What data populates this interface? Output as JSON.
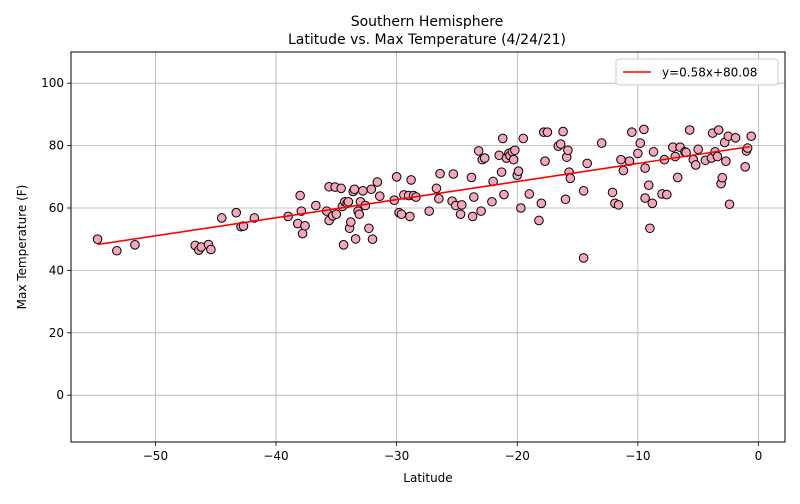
{
  "chart_data": {
    "type": "scatter",
    "title_line1": "Southern Hemisphere",
    "title_line2": "Latitude vs. Max Temperature (4/24/21)",
    "xlabel": "Latitude",
    "ylabel": "Max Temperature (F)",
    "xlim": [
      -57,
      2.2
    ],
    "ylim": [
      -15,
      110
    ],
    "xticks": [
      -50,
      -40,
      -30,
      -20,
      -10,
      0
    ],
    "yticks": [
      0,
      20,
      40,
      60,
      80,
      100
    ],
    "grid": true,
    "legend_position": "top-right",
    "legend_label": "y=0.58x+80.08",
    "regression": {
      "slope": 0.58,
      "intercept": 80.08,
      "x_range": [
        -54.8,
        -0.7
      ],
      "color": "#ff0000"
    },
    "marker_fill": "#f4a7b9",
    "marker_edge": "#000000",
    "points": [
      [
        -54.8,
        50
      ],
      [
        -53.2,
        46.3
      ],
      [
        -51.7,
        48.2
      ],
      [
        -46.7,
        48
      ],
      [
        -46.4,
        46.5
      ],
      [
        -46.2,
        47.5
      ],
      [
        -45.6,
        48.3
      ],
      [
        -45.4,
        46.7
      ],
      [
        -44.5,
        56.8
      ],
      [
        -43.3,
        58.5
      ],
      [
        -42.9,
        54
      ],
      [
        -42.7,
        54.2
      ],
      [
        -41.8,
        56.8
      ],
      [
        -39,
        57.3
      ],
      [
        -38.2,
        55
      ],
      [
        -38,
        64
      ],
      [
        -37.9,
        59
      ],
      [
        -37.8,
        51.8
      ],
      [
        -37.6,
        54.3
      ],
      [
        -36.7,
        60.8
      ],
      [
        -35.8,
        59
      ],
      [
        -35.6,
        66.8
      ],
      [
        -35.6,
        56
      ],
      [
        -35.3,
        57.5
      ],
      [
        -35.1,
        66.7
      ],
      [
        -35,
        58
      ],
      [
        -34.6,
        66.3
      ],
      [
        -34.5,
        60.5
      ],
      [
        -34.4,
        48.2
      ],
      [
        -34.3,
        62
      ],
      [
        -34.1,
        61.5
      ],
      [
        -34,
        62
      ],
      [
        -33.9,
        53.5
      ],
      [
        -33.8,
        55.5
      ],
      [
        -33.6,
        65.3
      ],
      [
        -33.5,
        66
      ],
      [
        -33.4,
        50.1
      ],
      [
        -33.2,
        59
      ],
      [
        -33.1,
        58
      ],
      [
        -33,
        62
      ],
      [
        -32.8,
        65.5
      ],
      [
        -32.6,
        60.8
      ],
      [
        -32.3,
        53.5
      ],
      [
        -32.1,
        66
      ],
      [
        -32,
        50
      ],
      [
        -31.6,
        68.3
      ],
      [
        -31.4,
        63.8
      ],
      [
        -30.2,
        62.5
      ],
      [
        -30,
        70
      ],
      [
        -29.8,
        58.5
      ],
      [
        -29.6,
        58
      ],
      [
        -29.4,
        64.2
      ],
      [
        -29,
        64
      ],
      [
        -28.9,
        57.3
      ],
      [
        -28.8,
        69
      ],
      [
        -28.6,
        64
      ],
      [
        -28.4,
        63.5
      ],
      [
        -27.3,
        59
      ],
      [
        -26.7,
        66.3
      ],
      [
        -26.5,
        63
      ],
      [
        -26.4,
        71
      ],
      [
        -25.4,
        62.2
      ],
      [
        -25.3,
        70.9
      ],
      [
        -25.1,
        60.8
      ],
      [
        -24.7,
        58
      ],
      [
        -24.6,
        61
      ],
      [
        -23.8,
        69.8
      ],
      [
        -23.7,
        57.3
      ],
      [
        -23.6,
        63.5
      ],
      [
        -23.2,
        78.3
      ],
      [
        -23,
        59
      ],
      [
        -22.9,
        75.5
      ],
      [
        -22.7,
        76
      ],
      [
        -22.1,
        62
      ],
      [
        -22,
        68.5
      ],
      [
        -21.5,
        76.9
      ],
      [
        -21.3,
        71.5
      ],
      [
        -21.2,
        82.3
      ],
      [
        -21.1,
        64.3
      ],
      [
        -20.9,
        76
      ],
      [
        -20.7,
        77.5
      ],
      [
        -20.6,
        76.8
      ],
      [
        -20.4,
        78
      ],
      [
        -20.3,
        75.5
      ],
      [
        -20.2,
        78.5
      ],
      [
        -20,
        70.5
      ],
      [
        -19.9,
        71.8
      ],
      [
        -19.7,
        60
      ],
      [
        -19.5,
        82.3
      ],
      [
        -19,
        64.5
      ],
      [
        -18.2,
        56
      ],
      [
        -18,
        61.5
      ],
      [
        -17.8,
        84.3
      ],
      [
        -17.7,
        75
      ],
      [
        -17.5,
        84.3
      ],
      [
        -16.6,
        79.8
      ],
      [
        -16.4,
        80.5
      ],
      [
        -16.2,
        84.5
      ],
      [
        -16,
        62.8
      ],
      [
        -15.9,
        76.3
      ],
      [
        -15.8,
        78.5
      ],
      [
        -15.7,
        71.5
      ],
      [
        -15.6,
        69.5
      ],
      [
        -14.5,
        65.5
      ],
      [
        -14.5,
        44
      ],
      [
        -14.2,
        74.3
      ],
      [
        -13,
        80.8
      ],
      [
        -12.1,
        65
      ],
      [
        -11.9,
        61.5
      ],
      [
        -11.6,
        61
      ],
      [
        -11.4,
        75.5
      ],
      [
        -11.2,
        72
      ],
      [
        -10.7,
        75
      ],
      [
        -10.5,
        84.3
      ],
      [
        -10,
        77.5
      ],
      [
        -9.8,
        80.8
      ],
      [
        -9.5,
        85.2
      ],
      [
        -9.4,
        72.8
      ],
      [
        -9.4,
        63.2
      ],
      [
        -9.1,
        67.3
      ],
      [
        -9,
        53.5
      ],
      [
        -8.8,
        61.5
      ],
      [
        -8.7,
        78
      ],
      [
        -8,
        64.5
      ],
      [
        -7.8,
        75.5
      ],
      [
        -7.6,
        64.3
      ],
      [
        -7.1,
        79.5
      ],
      [
        -6.9,
        76.5
      ],
      [
        -6.7,
        69.8
      ],
      [
        -6.5,
        79.5
      ],
      [
        -6.1,
        78
      ],
      [
        -6,
        77.8
      ],
      [
        -5.7,
        85
      ],
      [
        -5.4,
        75.5
      ],
      [
        -5.2,
        73.8
      ],
      [
        -5,
        78.8
      ],
      [
        -4.4,
        75.3
      ],
      [
        -3.9,
        76
      ],
      [
        -3.8,
        84
      ],
      [
        -3.6,
        78
      ],
      [
        -3.4,
        76.5
      ],
      [
        -3.3,
        85
      ],
      [
        -3.1,
        67.8
      ],
      [
        -3,
        69.7
      ],
      [
        -2.8,
        81
      ],
      [
        -2.7,
        75
      ],
      [
        -2.5,
        83
      ],
      [
        -2.4,
        61.2
      ],
      [
        -1.9,
        82.5
      ],
      [
        -1.1,
        73.2
      ],
      [
        -1,
        78.3
      ],
      [
        -0.9,
        79.2
      ],
      [
        -0.6,
        83
      ]
    ]
  }
}
